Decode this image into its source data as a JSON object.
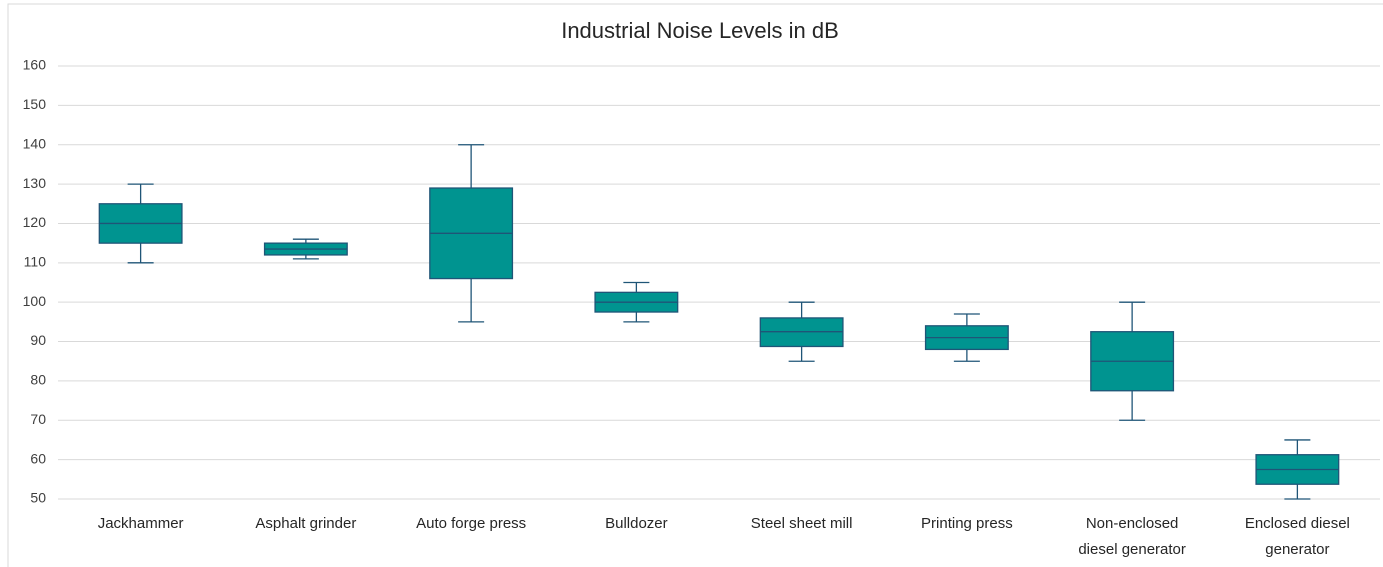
{
  "chart_data": {
    "type": "box",
    "title": "Industrial Noise Levels in dB",
    "categories": [
      "Jackhammer",
      "Asphalt grinder",
      "Auto forge press",
      "Bulldozer",
      "Steel sheet mill",
      "Printing press",
      "Non-enclosed diesel generator",
      "Enclosed diesel generator"
    ],
    "min": [
      110,
      111,
      95,
      95,
      85,
      85,
      70,
      50
    ],
    "q1": [
      115,
      112,
      106,
      97.5,
      88.75,
      88,
      77.5,
      53.75
    ],
    "median": [
      120,
      113.5,
      117.5,
      100,
      92.5,
      91,
      85,
      57.5
    ],
    "q3": [
      125,
      115,
      129,
      102.5,
      96,
      94,
      92.5,
      61.25
    ],
    "max": [
      130,
      116,
      140,
      105,
      100,
      97,
      100,
      65
    ],
    "color": "#009490",
    "line_color": "#1f5577",
    "ylim": [
      50,
      160
    ],
    "yticks": [
      50,
      60,
      70,
      80,
      90,
      100,
      110,
      120,
      130,
      140,
      150,
      160
    ],
    "grid": true
  }
}
